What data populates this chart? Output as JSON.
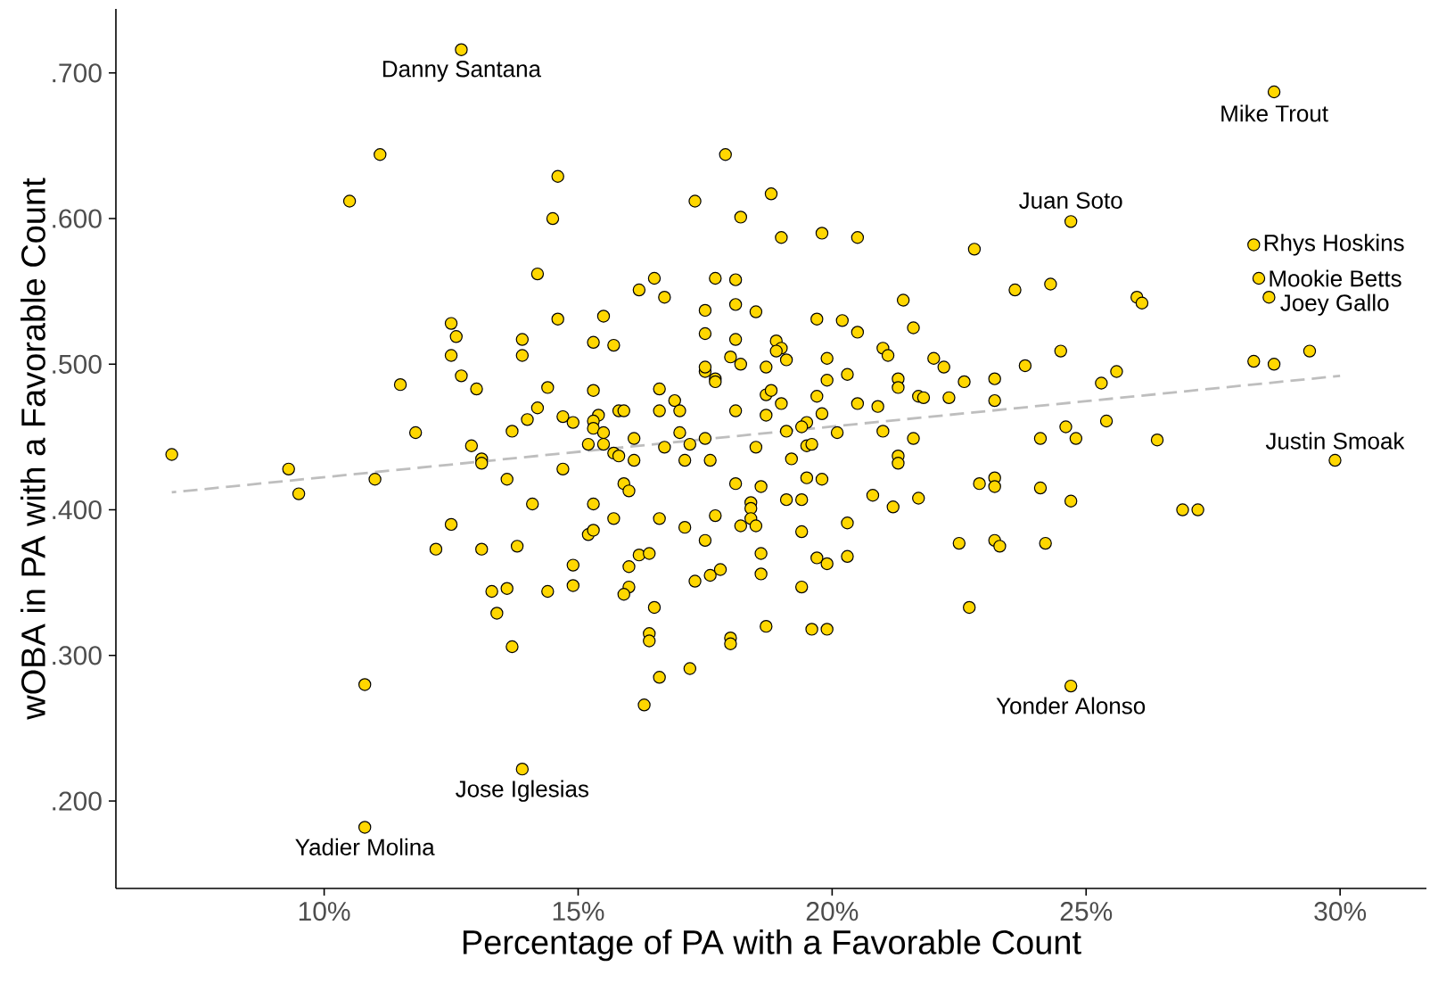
{
  "chart_data": {
    "type": "scatter",
    "xlabel": "Percentage of PA with a Favorable Count",
    "ylabel": "wOBA in PA with a Favorable Count",
    "xlim": [
      5.9,
      31.7
    ],
    "ylim": [
      0.14,
      0.744
    ],
    "xticks": [
      {
        "value": 10,
        "label": "10%"
      },
      {
        "value": 15,
        "label": "15%"
      },
      {
        "value": 20,
        "label": "20%"
      },
      {
        "value": 25,
        "label": "25%"
      },
      {
        "value": 30,
        "label": "30%"
      }
    ],
    "yticks": [
      {
        "value": 0.2,
        "label": ".200"
      },
      {
        "value": 0.3,
        "label": ".300"
      },
      {
        "value": 0.4,
        "label": ".400"
      },
      {
        "value": 0.5,
        "label": ".500"
      },
      {
        "value": 0.6,
        "label": ".600"
      },
      {
        "value": 0.7,
        "label": ".700"
      }
    ],
    "grid": false,
    "marker": "circle",
    "series": [
      {
        "color": "#ffd700",
        "x": [
          12.7,
          11.1,
          10.5,
          14.2,
          12.5,
          12.6,
          12.5,
          13.9,
          13.9,
          12.7,
          13.0,
          11.5,
          14.4,
          14.2,
          14.0,
          13.7,
          11.8,
          12.9,
          13.1,
          7.0,
          17.9,
          14.6,
          17.3,
          18.8,
          14.5,
          18.2,
          19.0,
          19.8,
          20.5,
          22.8,
          16.5,
          16.2,
          16.7,
          17.7,
          18.1,
          18.1,
          17.5,
          18.5,
          21.4,
          14.6,
          15.5,
          19.7,
          20.2,
          20.5,
          21.6,
          17.5,
          15.3,
          15.7,
          18.1,
          18.9,
          19.0,
          18.9,
          21.0,
          21.1,
          18.0,
          18.2,
          19.1,
          19.9,
          22.0,
          22.2,
          17.5,
          17.5,
          17.7,
          17.7,
          18.7,
          20.3,
          19.9,
          21.3,
          21.3,
          22.6,
          15.3,
          16.6,
          16.9,
          17.0,
          16.6,
          15.8,
          15.9,
          15.4,
          14.7,
          14.9,
          15.3,
          15.3,
          15.5,
          18.1,
          18.7,
          18.8,
          18.7,
          19.0,
          19.7,
          19.8,
          20.5,
          20.9,
          21.7,
          21.8,
          22.3,
          19.5,
          19.4,
          19.1,
          20.1,
          21.0,
          21.6,
          17.0,
          16.1,
          17.5,
          15.2,
          15.5,
          16.7,
          17.2,
          18.5,
          19.5,
          19.6,
          15.7,
          15.8,
          16.1,
          17.1,
          17.6,
          19.2,
          21.3,
          28.7,
          24.7,
          28.3,
          28.4,
          28.6,
          23.6,
          24.3,
          26.0,
          26.1,
          24.5,
          23.8,
          23.2,
          25.3,
          25.6,
          28.3,
          28.7,
          29.4,
          23.2,
          24.6,
          24.8,
          25.4,
          24.1,
          26.4,
          29.9,
          9.3,
          9.5,
          11.0,
          13.1,
          13.6,
          14.1,
          12.5,
          12.2,
          13.1,
          13.8,
          13.3,
          13.6,
          14.4,
          13.4,
          13.7,
          10.8,
          13.9,
          10.8,
          14.7,
          15.9,
          16.0,
          18.1,
          18.6,
          19.8,
          19.5,
          19.1,
          19.4,
          20.8,
          21.2,
          21.7,
          21.3,
          15.3,
          15.7,
          16.6,
          17.1,
          17.7,
          18.4,
          18.4,
          18.4,
          18.5,
          18.2,
          15.2,
          15.3,
          17.5,
          19.4,
          20.3,
          20.3,
          19.7,
          19.9,
          18.6,
          18.6,
          16.2,
          16.4,
          16.0,
          14.9,
          14.9,
          16.0,
          15.9,
          17.3,
          17.6,
          17.8,
          19.4,
          16.5,
          18.7,
          19.6,
          19.9,
          16.4,
          16.4,
          18.0,
          18.0,
          17.2,
          16.6,
          16.3,
          22.5,
          22.7,
          22.9,
          23.2,
          23.2,
          24.1,
          24.7,
          26.9,
          27.2,
          23.2,
          23.3,
          24.2,
          24.7
        ],
        "values": [
          0.716,
          0.644,
          0.612,
          0.562,
          0.528,
          0.519,
          0.506,
          0.517,
          0.506,
          0.492,
          0.483,
          0.486,
          0.484,
          0.47,
          0.462,
          0.454,
          0.453,
          0.444,
          0.435,
          0.438,
          0.644,
          0.629,
          0.612,
          0.617,
          0.6,
          0.601,
          0.587,
          0.59,
          0.587,
          0.579,
          0.559,
          0.551,
          0.546,
          0.559,
          0.558,
          0.541,
          0.537,
          0.536,
          0.544,
          0.531,
          0.533,
          0.531,
          0.53,
          0.522,
          0.525,
          0.521,
          0.515,
          0.513,
          0.517,
          0.516,
          0.511,
          0.509,
          0.511,
          0.506,
          0.505,
          0.5,
          0.503,
          0.504,
          0.504,
          0.498,
          0.495,
          0.498,
          0.49,
          0.488,
          0.498,
          0.493,
          0.489,
          0.49,
          0.484,
          0.488,
          0.482,
          0.483,
          0.475,
          0.468,
          0.468,
          0.468,
          0.468,
          0.465,
          0.464,
          0.46,
          0.461,
          0.456,
          0.453,
          0.468,
          0.479,
          0.482,
          0.465,
          0.473,
          0.478,
          0.466,
          0.473,
          0.471,
          0.478,
          0.477,
          0.477,
          0.46,
          0.457,
          0.454,
          0.453,
          0.454,
          0.449,
          0.453,
          0.449,
          0.449,
          0.445,
          0.445,
          0.443,
          0.445,
          0.443,
          0.444,
          0.445,
          0.439,
          0.437,
          0.434,
          0.434,
          0.434,
          0.435,
          0.437,
          0.687,
          0.598,
          0.582,
          0.559,
          0.546,
          0.551,
          0.555,
          0.546,
          0.542,
          0.509,
          0.499,
          0.49,
          0.487,
          0.495,
          0.502,
          0.5,
          0.509,
          0.475,
          0.457,
          0.449,
          0.461,
          0.449,
          0.448,
          0.434,
          0.428,
          0.411,
          0.421,
          0.432,
          0.421,
          0.404,
          0.39,
          0.373,
          0.373,
          0.375,
          0.344,
          0.346,
          0.344,
          0.329,
          0.306,
          0.28,
          0.222,
          0.182,
          0.428,
          0.418,
          0.413,
          0.418,
          0.416,
          0.421,
          0.422,
          0.407,
          0.407,
          0.41,
          0.402,
          0.408,
          0.432,
          0.404,
          0.394,
          0.394,
          0.388,
          0.396,
          0.405,
          0.401,
          0.394,
          0.389,
          0.389,
          0.383,
          0.386,
          0.379,
          0.385,
          0.391,
          0.368,
          0.367,
          0.363,
          0.37,
          0.356,
          0.369,
          0.37,
          0.361,
          0.362,
          0.348,
          0.347,
          0.342,
          0.351,
          0.355,
          0.359,
          0.347,
          0.333,
          0.32,
          0.318,
          0.318,
          0.315,
          0.31,
          0.312,
          0.308,
          0.291,
          0.285,
          0.266,
          0.377,
          0.333,
          0.418,
          0.422,
          0.416,
          0.415,
          0.406,
          0.4,
          0.4,
          0.379,
          0.375,
          0.377,
          0.279
        ]
      },
      {
        "type": "line",
        "color": "#bebebe",
        "line_style": "dashed",
        "marker": "none",
        "x": [
          7.0,
          30.0
        ],
        "values": [
          0.412,
          0.492
        ]
      }
    ],
    "annotations": [
      {
        "text": "Danny Santana",
        "x": 12.7,
        "y": 0.716
      },
      {
        "text": "Mike Trout",
        "x": 28.7,
        "y": 0.687
      },
      {
        "text": "Juan Soto",
        "x": 24.7,
        "y": 0.598
      },
      {
        "text": "Rhys Hoskins",
        "x": 28.3,
        "y": 0.582
      },
      {
        "text": "Mookie Betts",
        "x": 28.4,
        "y": 0.559
      },
      {
        "text": "Joey Gallo",
        "x": 28.6,
        "y": 0.546
      },
      {
        "text": "Justin Smoak",
        "x": 29.9,
        "y": 0.434
      },
      {
        "text": "Yonder Alonso",
        "x": 24.7,
        "y": 0.279
      },
      {
        "text": "Jose Iglesias",
        "x": 13.9,
        "y": 0.222
      },
      {
        "text": "Yadier Molina",
        "x": 10.8,
        "y": 0.182
      }
    ]
  }
}
